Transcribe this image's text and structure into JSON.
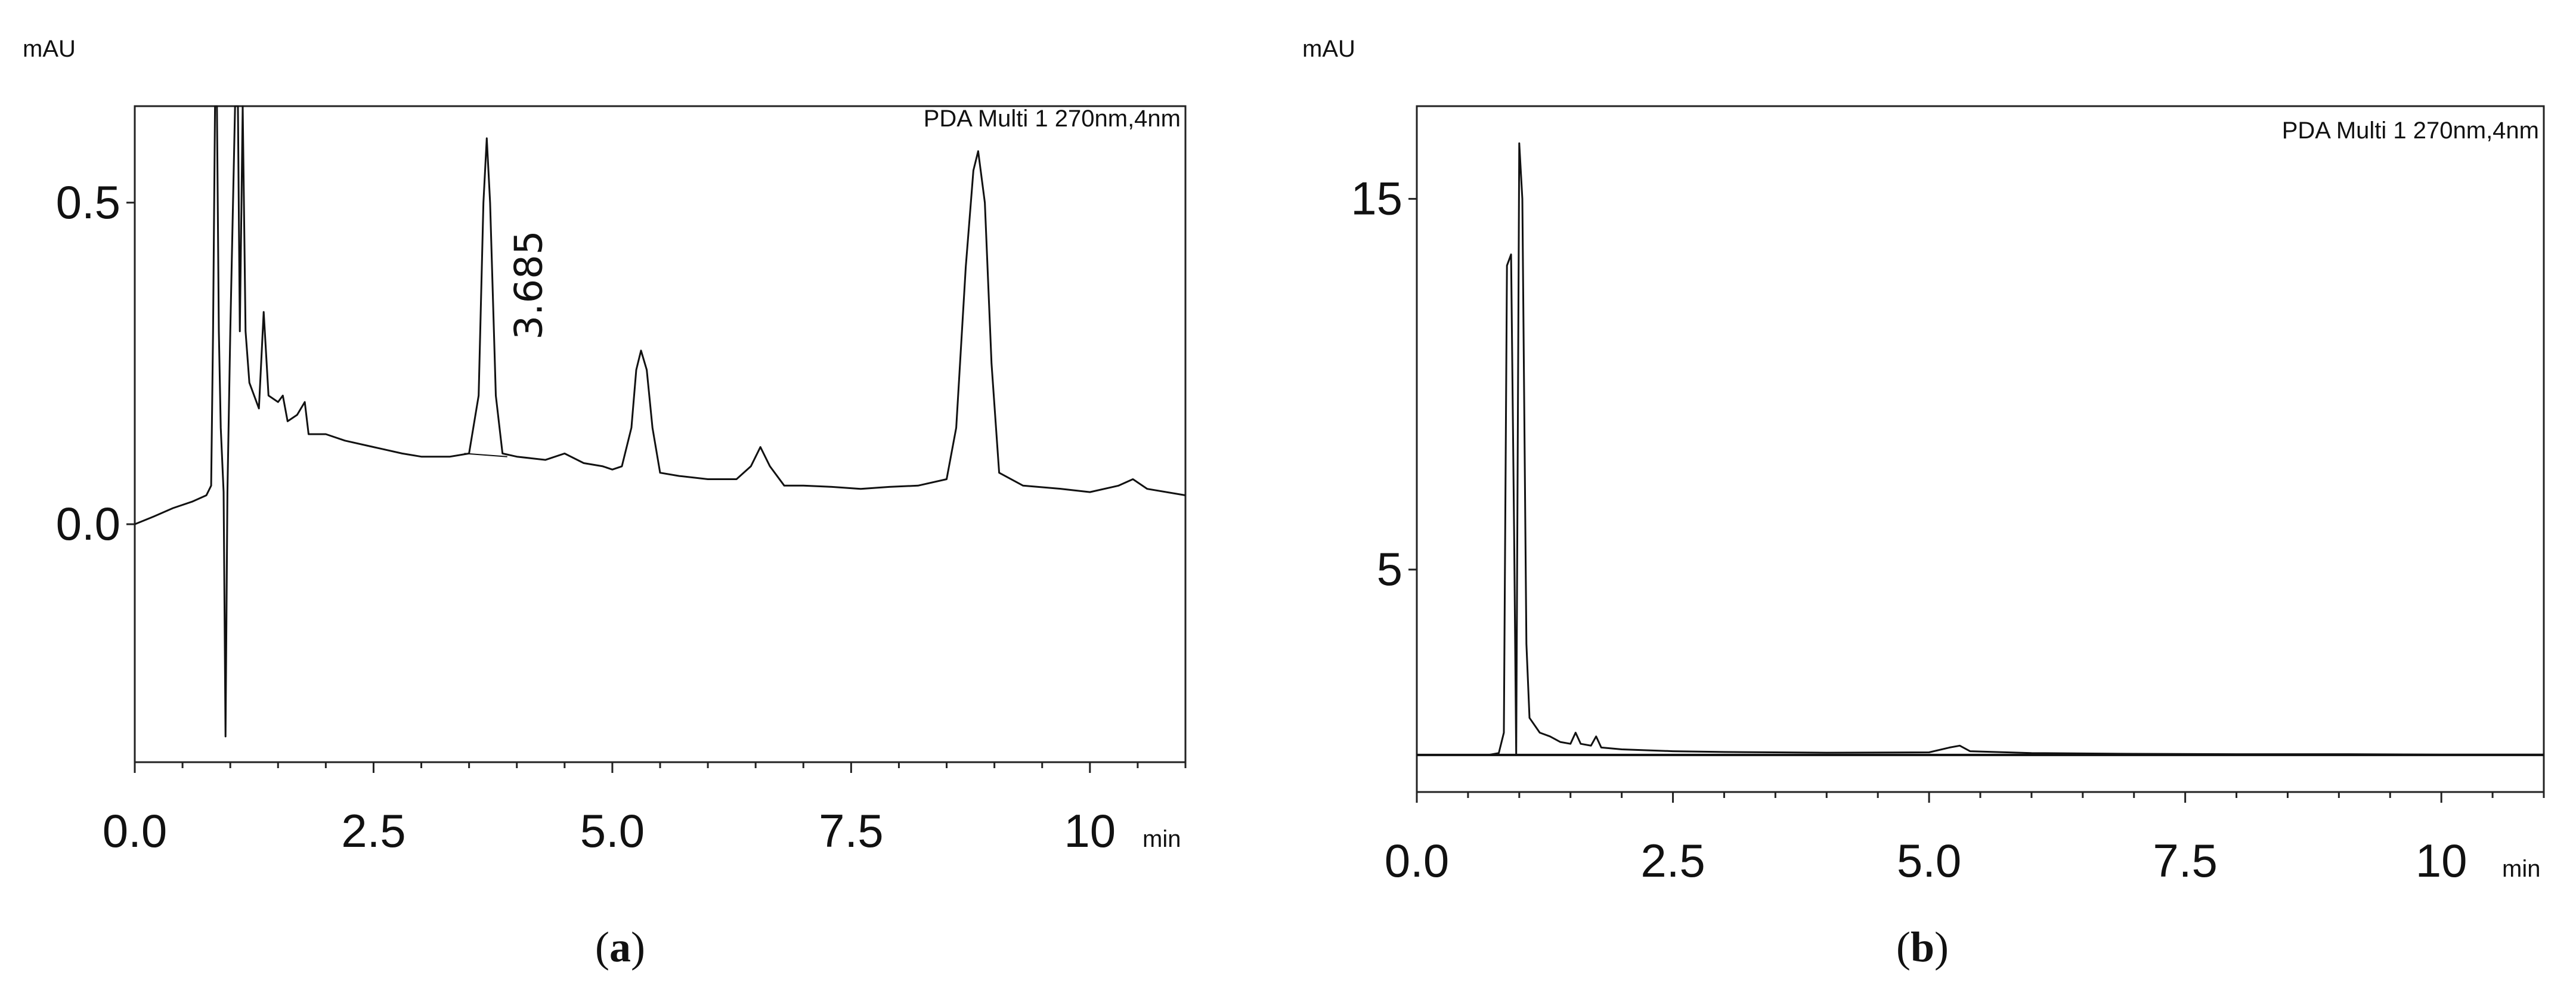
{
  "chart_data": [
    {
      "type": "line",
      "panel_label": "a",
      "y_unit": "mAU",
      "x_unit": "min",
      "legend": "PDA Multi 1 270nm,4nm",
      "xlim": [
        0,
        11
      ],
      "ylim": [
        -0.37,
        0.65
      ],
      "x_ticks": [
        0.0,
        2.5,
        5.0,
        7.5,
        10
      ],
      "x_tick_labels": [
        "0.0",
        "2.5",
        "5.0",
        "7.5",
        "10"
      ],
      "y_ticks": [
        0.0,
        0.5
      ],
      "y_tick_labels": [
        "0.0",
        "0.5"
      ],
      "peak_annotations": [
        {
          "x": 3.685,
          "text": "3.685"
        }
      ],
      "series": [
        {
          "points": [
            [
              0.0,
              0.0
            ],
            [
              0.2,
              0.012
            ],
            [
              0.4,
              0.025
            ],
            [
              0.6,
              0.035
            ],
            [
              0.75,
              0.045
            ],
            [
              0.8,
              0.06
            ],
            [
              0.82,
              0.3
            ],
            [
              0.84,
              0.65
            ],
            [
              0.86,
              0.65
            ],
            [
              0.88,
              0.3
            ],
            [
              0.9,
              0.15
            ],
            [
              0.93,
              0.05
            ],
            [
              0.95,
              -0.33
            ],
            [
              0.97,
              0.05
            ],
            [
              1.0,
              0.3
            ],
            [
              1.05,
              0.65
            ],
            [
              1.08,
              0.65
            ],
            [
              1.1,
              0.3
            ],
            [
              1.13,
              0.65
            ],
            [
              1.16,
              0.3
            ],
            [
              1.2,
              0.22
            ],
            [
              1.3,
              0.18
            ],
            [
              1.35,
              0.33
            ],
            [
              1.4,
              0.2
            ],
            [
              1.5,
              0.19
            ],
            [
              1.55,
              0.2
            ],
            [
              1.6,
              0.16
            ],
            [
              1.7,
              0.17
            ],
            [
              1.78,
              0.19
            ],
            [
              1.82,
              0.14
            ],
            [
              2.0,
              0.14
            ],
            [
              2.2,
              0.13
            ],
            [
              2.5,
              0.12
            ],
            [
              2.8,
              0.11
            ],
            [
              3.0,
              0.105
            ],
            [
              3.3,
              0.105
            ],
            [
              3.5,
              0.11
            ],
            [
              3.6,
              0.2
            ],
            [
              3.65,
              0.5
            ],
            [
              3.685,
              0.6
            ],
            [
              3.72,
              0.5
            ],
            [
              3.78,
              0.2
            ],
            [
              3.85,
              0.11
            ],
            [
              4.0,
              0.105
            ],
            [
              4.3,
              0.1
            ],
            [
              4.5,
              0.11
            ],
            [
              4.7,
              0.095
            ],
            [
              4.9,
              0.09
            ],
            [
              5.0,
              0.085
            ],
            [
              5.1,
              0.09
            ],
            [
              5.2,
              0.15
            ],
            [
              5.25,
              0.24
            ],
            [
              5.3,
              0.27
            ],
            [
              5.36,
              0.24
            ],
            [
              5.42,
              0.15
            ],
            [
              5.5,
              0.08
            ],
            [
              5.7,
              0.075
            ],
            [
              6.0,
              0.07
            ],
            [
              6.3,
              0.07
            ],
            [
              6.45,
              0.09
            ],
            [
              6.55,
              0.12
            ],
            [
              6.65,
              0.09
            ],
            [
              6.8,
              0.06
            ],
            [
              7.0,
              0.06
            ],
            [
              7.3,
              0.058
            ],
            [
              7.6,
              0.055
            ],
            [
              7.9,
              0.058
            ],
            [
              8.2,
              0.06
            ],
            [
              8.5,
              0.07
            ],
            [
              8.6,
              0.15
            ],
            [
              8.7,
              0.4
            ],
            [
              8.78,
              0.55
            ],
            [
              8.83,
              0.58
            ],
            [
              8.9,
              0.5
            ],
            [
              8.97,
              0.25
            ],
            [
              9.05,
              0.08
            ],
            [
              9.3,
              0.06
            ],
            [
              9.7,
              0.055
            ],
            [
              10.0,
              0.05
            ],
            [
              10.3,
              0.06
            ],
            [
              10.45,
              0.07
            ],
            [
              10.6,
              0.055
            ],
            [
              11.0,
              0.045
            ]
          ]
        }
      ]
    },
    {
      "type": "line",
      "panel_label": "b",
      "y_unit": "mAU",
      "x_unit": "min",
      "legend": "PDA Multi 1 270nm,4nm",
      "xlim": [
        0,
        11
      ],
      "ylim": [
        -1,
        17.5
      ],
      "x_ticks": [
        0.0,
        2.5,
        5.0,
        7.5,
        10
      ],
      "x_tick_labels": [
        "0.0",
        "2.5",
        "5.0",
        "7.5",
        "10"
      ],
      "y_ticks": [
        5,
        15
      ],
      "y_tick_labels": [
        "5",
        "15"
      ],
      "baseline_y": 0,
      "series": [
        {
          "points": [
            [
              0.0,
              0.0
            ],
            [
              0.7,
              0.0
            ],
            [
              0.8,
              0.05
            ],
            [
              0.85,
              0.6
            ],
            [
              0.88,
              13.2
            ],
            [
              0.92,
              13.5
            ],
            [
              0.95,
              6.0
            ],
            [
              0.97,
              0.0
            ],
            [
              1.0,
              16.5
            ],
            [
              1.03,
              15.0
            ],
            [
              1.07,
              3.0
            ],
            [
              1.1,
              1.0
            ],
            [
              1.2,
              0.6
            ],
            [
              1.3,
              0.5
            ],
            [
              1.4,
              0.35
            ],
            [
              1.5,
              0.3
            ],
            [
              1.55,
              0.6
            ],
            [
              1.6,
              0.3
            ],
            [
              1.7,
              0.25
            ],
            [
              1.75,
              0.5
            ],
            [
              1.8,
              0.2
            ],
            [
              2.0,
              0.15
            ],
            [
              2.5,
              0.1
            ],
            [
              3.0,
              0.08
            ],
            [
              4.0,
              0.06
            ],
            [
              5.0,
              0.07
            ],
            [
              5.2,
              0.2
            ],
            [
              5.3,
              0.25
            ],
            [
              5.4,
              0.1
            ],
            [
              6.0,
              0.05
            ],
            [
              7.0,
              0.03
            ],
            [
              8.0,
              0.02
            ],
            [
              9.0,
              0.02
            ],
            [
              10.0,
              0.01
            ],
            [
              11.0,
              0.01
            ]
          ]
        }
      ]
    }
  ]
}
